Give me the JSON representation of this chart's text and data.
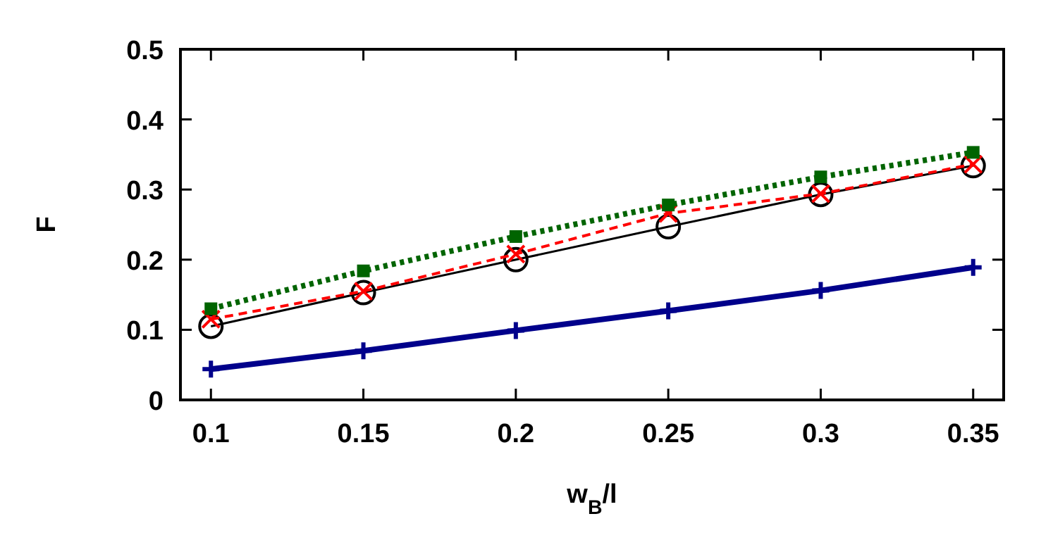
{
  "chart_data": {
    "type": "line",
    "xlabel": "w$_{B}$/l",
    "ylabel": "F",
    "x": [
      0.1,
      0.15,
      0.2,
      0.25,
      0.3,
      0.35
    ],
    "xlim": [
      0.09,
      0.36
    ],
    "xticks": [
      0.1,
      0.15,
      0.2,
      0.25,
      0.3,
      0.35
    ],
    "ylim": [
      0,
      0.5
    ],
    "yticks": [
      0,
      0.1,
      0.2,
      0.3,
      0.4,
      0.5
    ],
    "grid": false,
    "series": [
      {
        "color": "#00008b",
        "values": [
          0.044,
          0.07,
          0.099,
          0.127,
          0.156,
          0.189
        ],
        "marker": "cross",
        "line_style": "solid"
      },
      {
        "color": "#000000",
        "values": [
          0.105,
          0.153,
          0.2,
          0.247,
          0.293,
          0.334
        ],
        "marker": "circle",
        "line_style": "solid"
      },
      {
        "color": "#ff0000",
        "values": [
          0.115,
          0.155,
          0.208,
          0.266,
          0.294,
          0.336
        ],
        "marker": "x",
        "line_style": "dashed"
      },
      {
        "color": "#006400",
        "values": [
          0.13,
          0.184,
          0.233,
          0.278,
          0.318,
          0.353
        ],
        "marker": "square",
        "line_style": "dotted"
      }
    ]
  }
}
